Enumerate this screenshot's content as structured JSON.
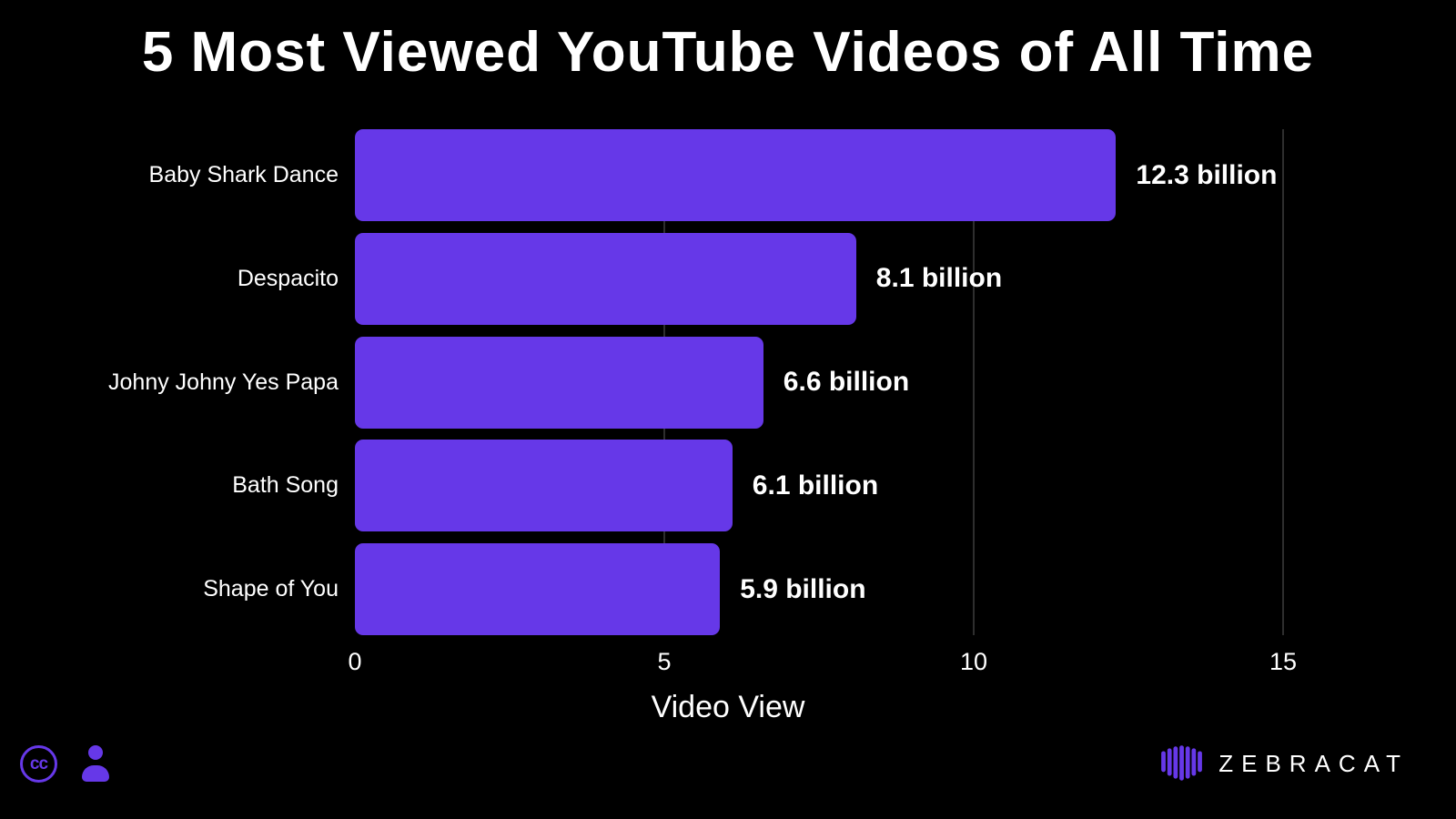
{
  "title": "5 Most Viewed YouTube Videos of All Time",
  "chart_data": {
    "type": "bar",
    "orientation": "horizontal",
    "title": "5 Most Viewed YouTube Videos of All Time",
    "categories": [
      "Baby Shark Dance",
      "Despacito",
      "Johny Johny Yes Papa",
      "Bath Song",
      "Shape of You"
    ],
    "values": [
      12.3,
      8.1,
      6.6,
      6.1,
      5.9
    ],
    "value_labels": [
      "12.3 billion",
      "8.1 billion",
      "6.6 billion",
      "6.1 billion",
      "5.9 billion"
    ],
    "xlabel": "Video View",
    "ylabel": "",
    "x_ticks": [
      0,
      5,
      10,
      15
    ],
    "gridline_ticks": [
      5,
      10,
      15
    ],
    "xlim": [
      0,
      15
    ],
    "grid": true,
    "legend": "none",
    "bar_color": "#6638e8",
    "background_color": "#000000",
    "text_color": "#ffffff",
    "gridline_color": "#2e2e2e"
  },
  "footer": {
    "cc_label": "cc",
    "icons": [
      "cc-icon",
      "person-icon",
      "zebracat-logo-icon"
    ],
    "brand": "ZEBRACAT",
    "accent_color": "#6638e8"
  }
}
